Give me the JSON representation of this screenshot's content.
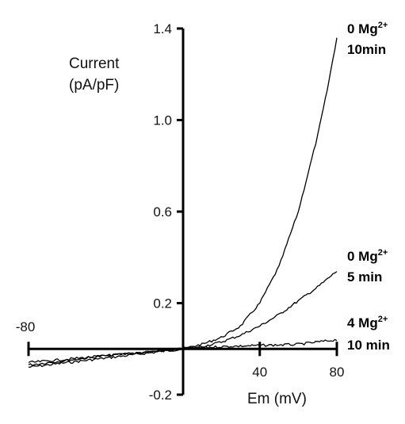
{
  "chart_data": {
    "type": "line",
    "xlabel": "Em (mV)",
    "ylabel_line1": "Current",
    "ylabel_line2": "(pA/pF)",
    "xlim": [
      -80,
      80
    ],
    "ylim": [
      -0.2,
      1.4
    ],
    "x_ticks": [
      -80,
      40,
      80
    ],
    "x_tick_labels": [
      "-80",
      "40",
      "80"
    ],
    "y_ticks": [
      -0.2,
      0.2,
      0.6,
      1.0,
      1.4
    ],
    "y_tick_labels": [
      "-0.2",
      "0.2",
      "0.6",
      "1.0",
      "1.4"
    ],
    "colors": {
      "axis": "#000000",
      "trace": "#000000"
    },
    "series": [
      {
        "label_line1": "0 Mg",
        "label_sup": "2+",
        "label_line2": "10min",
        "x": [
          -80,
          -60,
          -40,
          -20,
          0,
          10,
          20,
          30,
          40,
          50,
          60,
          70,
          75,
          80
        ],
        "y": [
          -0.08,
          -0.06,
          -0.04,
          -0.02,
          0.0,
          0.02,
          0.05,
          0.1,
          0.2,
          0.36,
          0.6,
          0.93,
          1.13,
          1.36
        ]
      },
      {
        "label_line1": "0 Mg",
        "label_sup": "2+",
        "label_line2": "5 min",
        "x": [
          -80,
          -60,
          -40,
          -20,
          0,
          10,
          20,
          30,
          40,
          50,
          60,
          70,
          80
        ],
        "y": [
          -0.07,
          -0.05,
          -0.03,
          -0.015,
          0.0,
          0.01,
          0.03,
          0.06,
          0.1,
          0.15,
          0.21,
          0.27,
          0.34
        ]
      },
      {
        "label_line1": "4 Mg",
        "label_sup": "2+",
        "label_line2": "10 min",
        "x": [
          -80,
          -60,
          -40,
          -20,
          0,
          20,
          40,
          60,
          70,
          80
        ],
        "y": [
          -0.06,
          -0.045,
          -0.03,
          -0.015,
          0.0,
          0.01,
          0.015,
          0.02,
          0.03,
          0.04
        ]
      }
    ]
  }
}
